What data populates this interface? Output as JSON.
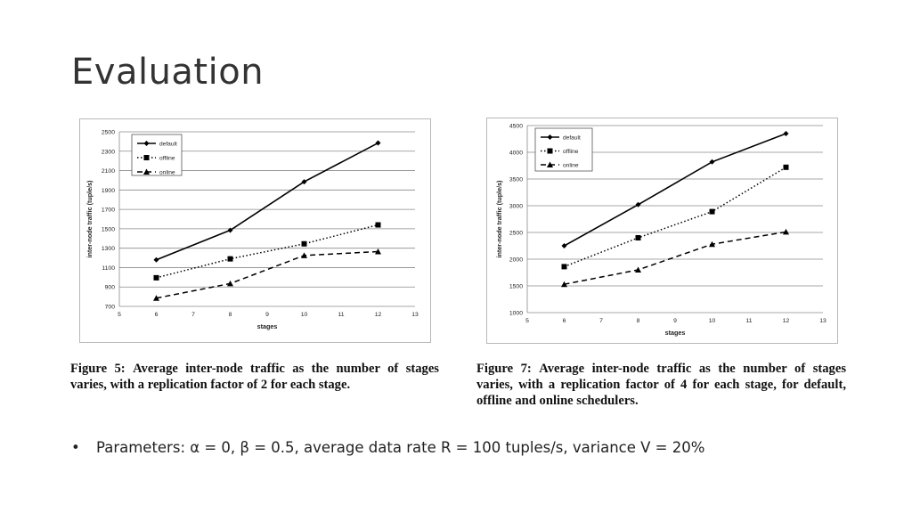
{
  "slide": {
    "title": "Evaluation",
    "bullet": "Parameters: α = 0, β = 0.5, average data rate R = 100 tuples/s, variance V = 20%",
    "bullet_marker": "•"
  },
  "captions": [
    {
      "label": "Figure 5:",
      "text": "Average inter-node traffic as the number of stages varies, with a replication factor of 2 for each stage."
    },
    {
      "label": "Figure 7:",
      "text": "Average inter-node traffic as the number of stages varies, with a replication factor of 4 for each stage, for default, offline and online schedulers."
    }
  ],
  "chart_data": [
    {
      "type": "line",
      "xlabel": "stages",
      "ylabel": "inter-node traffic (tuple/s)",
      "xlim": [
        5,
        13
      ],
      "ylim": [
        700,
        2500
      ],
      "xticks": [
        5,
        6,
        7,
        8,
        9,
        10,
        11,
        12,
        13
      ],
      "yticks": [
        700,
        900,
        1100,
        1300,
        1500,
        1700,
        1900,
        2100,
        2300,
        2500
      ],
      "grid": "horizontal",
      "legend_position": "top-left",
      "x": [
        6,
        8,
        10,
        12
      ],
      "series": [
        {
          "name": "default",
          "values": [
            1180,
            1485,
            1985,
            2385
          ],
          "style": "solid",
          "marker": "diamond"
        },
        {
          "name": "offline",
          "values": [
            995,
            1190,
            1345,
            1540
          ],
          "style": "dotted",
          "marker": "square"
        },
        {
          "name": "online",
          "values": [
            785,
            935,
            1225,
            1265
          ],
          "style": "dashed",
          "marker": "triangle"
        }
      ]
    },
    {
      "type": "line",
      "xlabel": "stages",
      "ylabel": "inter-node traffic (tuple/s)",
      "xlim": [
        5,
        13
      ],
      "ylim": [
        1000,
        4500
      ],
      "xticks": [
        5,
        6,
        7,
        8,
        9,
        10,
        11,
        12,
        13
      ],
      "yticks": [
        1000,
        1500,
        2000,
        2500,
        3000,
        3500,
        4000,
        4500
      ],
      "grid": "horizontal",
      "legend_position": "top-left",
      "x": [
        6,
        8,
        10,
        12
      ],
      "series": [
        {
          "name": "default",
          "values": [
            2250,
            3020,
            3820,
            4350
          ],
          "style": "solid",
          "marker": "diamond"
        },
        {
          "name": "offline",
          "values": [
            1860,
            2400,
            2890,
            3720
          ],
          "style": "dotted",
          "marker": "square"
        },
        {
          "name": "online",
          "values": [
            1530,
            1800,
            2280,
            2510
          ],
          "style": "dashed",
          "marker": "triangle"
        }
      ]
    }
  ]
}
